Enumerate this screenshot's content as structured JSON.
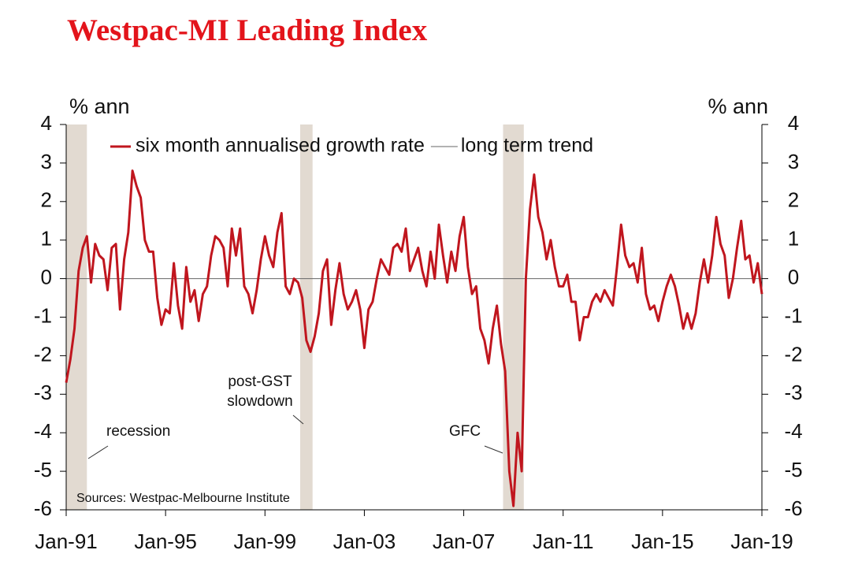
{
  "chart_data": {
    "type": "line",
    "title": "Westpac-MI Leading Index",
    "ylabel": "% ann",
    "y2label": "% ann",
    "source": "Sources: Westpac-Melbourne Institute",
    "x": [
      "1991-01",
      "1991-03",
      "1991-05",
      "1991-07",
      "1991-09",
      "1991-11",
      "1992-01",
      "1992-03",
      "1992-05",
      "1992-07",
      "1992-09",
      "1992-11",
      "1993-01",
      "1993-03",
      "1993-05",
      "1993-07",
      "1993-09",
      "1993-11",
      "1994-01",
      "1994-03",
      "1994-05",
      "1994-07",
      "1994-09",
      "1994-11",
      "1995-01",
      "1995-03",
      "1995-05",
      "1995-07",
      "1995-09",
      "1995-11",
      "1996-01",
      "1996-03",
      "1996-05",
      "1996-07",
      "1996-09",
      "1996-11",
      "1997-01",
      "1997-03",
      "1997-05",
      "1997-07",
      "1997-09",
      "1997-11",
      "1998-01",
      "1998-03",
      "1998-05",
      "1998-07",
      "1998-09",
      "1998-11",
      "1999-01",
      "1999-03",
      "1999-05",
      "1999-07",
      "1999-09",
      "1999-11",
      "2000-01",
      "2000-03",
      "2000-05",
      "2000-07",
      "2000-09",
      "2000-11",
      "2001-01",
      "2001-03",
      "2001-05",
      "2001-07",
      "2001-09",
      "2001-11",
      "2002-01",
      "2002-03",
      "2002-05",
      "2002-07",
      "2002-09",
      "2002-11",
      "2003-01",
      "2003-03",
      "2003-05",
      "2003-07",
      "2003-09",
      "2003-11",
      "2004-01",
      "2004-03",
      "2004-05",
      "2004-07",
      "2004-09",
      "2004-11",
      "2005-01",
      "2005-03",
      "2005-05",
      "2005-07",
      "2005-09",
      "2005-11",
      "2006-01",
      "2006-03",
      "2006-05",
      "2006-07",
      "2006-09",
      "2006-11",
      "2007-01",
      "2007-03",
      "2007-05",
      "2007-07",
      "2007-09",
      "2007-11",
      "2008-01",
      "2008-03",
      "2008-05",
      "2008-07",
      "2008-09",
      "2008-11",
      "2009-01",
      "2009-03",
      "2009-05",
      "2009-07",
      "2009-09",
      "2009-11",
      "2010-01",
      "2010-03",
      "2010-05",
      "2010-07",
      "2010-09",
      "2010-11",
      "2011-01",
      "2011-03",
      "2011-05",
      "2011-07",
      "2011-09",
      "2011-11",
      "2012-01",
      "2012-03",
      "2012-05",
      "2012-07",
      "2012-09",
      "2012-11",
      "2013-01",
      "2013-03",
      "2013-05",
      "2013-07",
      "2013-09",
      "2013-11",
      "2014-01",
      "2014-03",
      "2014-05",
      "2014-07",
      "2014-09",
      "2014-11",
      "2015-01",
      "2015-03",
      "2015-05",
      "2015-07",
      "2015-09",
      "2015-11",
      "2016-01",
      "2016-03",
      "2016-05",
      "2016-07",
      "2016-09",
      "2016-11",
      "2017-01",
      "2017-03",
      "2017-05",
      "2017-07",
      "2017-09",
      "2017-11",
      "2018-01",
      "2018-03",
      "2018-05",
      "2018-07",
      "2018-09",
      "2018-11",
      "2019-01"
    ],
    "series": [
      {
        "name": "six month annualised growth rate",
        "color": "#c0161e",
        "values": [
          -2.7,
          -2.1,
          -1.3,
          0.2,
          0.8,
          1.1,
          -0.1,
          0.9,
          0.6,
          0.5,
          -0.3,
          0.8,
          0.9,
          -0.8,
          0.5,
          1.2,
          2.8,
          2.4,
          2.1,
          1.0,
          0.7,
          0.7,
          -0.5,
          -1.2,
          -0.8,
          -0.9,
          0.4,
          -0.7,
          -1.3,
          0.3,
          -0.6,
          -0.3,
          -1.1,
          -0.4,
          -0.2,
          0.6,
          1.1,
          1.0,
          0.8,
          -0.2,
          1.3,
          0.6,
          1.3,
          -0.2,
          -0.4,
          -0.9,
          -0.3,
          0.5,
          1.1,
          0.6,
          0.3,
          1.2,
          1.7,
          -0.2,
          -0.4,
          0.0,
          -0.1,
          -0.5,
          -1.6,
          -1.9,
          -1.5,
          -0.9,
          0.2,
          0.5,
          -1.2,
          -0.3,
          0.4,
          -0.4,
          -0.8,
          -0.6,
          -0.3,
          -0.8,
          -1.8,
          -0.8,
          -0.6,
          0.0,
          0.5,
          0.3,
          0.1,
          0.8,
          0.9,
          0.7,
          1.3,
          0.2,
          0.5,
          0.8,
          0.2,
          -0.2,
          0.7,
          0.0,
          1.4,
          0.6,
          -0.1,
          0.7,
          0.2,
          1.1,
          1.6,
          0.3,
          -0.4,
          -0.2,
          -1.3,
          -1.6,
          -2.2,
          -1.3,
          -0.7,
          -1.7,
          -2.4,
          -5.0,
          -5.9,
          -4.0,
          -5.0,
          0.0,
          1.8,
          2.7,
          1.6,
          1.2,
          0.5,
          1.0,
          0.3,
          -0.2,
          -0.2,
          0.1,
          -0.6,
          -0.6,
          -1.6,
          -1.0,
          -1.0,
          -0.6,
          -0.4,
          -0.6,
          -0.3,
          -0.5,
          -0.7,
          0.3,
          1.4,
          0.6,
          0.3,
          0.4,
          -0.1,
          0.8,
          -0.4,
          -0.8,
          -0.7,
          -1.1,
          -0.6,
          -0.2,
          0.1,
          -0.2,
          -0.7,
          -1.3,
          -0.9,
          -1.3,
          -0.9,
          -0.1,
          0.5,
          -0.1,
          0.6,
          1.6,
          0.9,
          0.6,
          -0.5,
          0.0,
          0.8,
          1.5,
          0.5,
          0.6,
          -0.1,
          0.4,
          -0.4
        ]
      }
    ],
    "trend": {
      "name": "long term trend",
      "color": "#666666",
      "value": 0
    },
    "shaded_periods": [
      {
        "start": "1991-01",
        "end": "1991-11",
        "labels": [
          "recession"
        ]
      },
      {
        "start": "2000-06",
        "end": "2000-12",
        "labels": [
          "post-GST",
          "slowdown"
        ]
      },
      {
        "start": "2008-08",
        "end": "2009-06",
        "labels": [
          "GFC"
        ]
      }
    ],
    "shade_color": "#e2dad1",
    "xlim": [
      "1991-01",
      "2019-01"
    ],
    "xticks": [
      {
        "value": "1991-01",
        "label": "Jan-91"
      },
      {
        "value": "1995-01",
        "label": "Jan-95"
      },
      {
        "value": "1999-01",
        "label": "Jan-99"
      },
      {
        "value": "2003-01",
        "label": "Jan-03"
      },
      {
        "value": "2007-01",
        "label": "Jan-07"
      },
      {
        "value": "2011-01",
        "label": "Jan-11"
      },
      {
        "value": "2015-01",
        "label": "Jan-15"
      },
      {
        "value": "2019-01",
        "label": "Jan-19"
      }
    ],
    "ylim": [
      -6,
      4
    ],
    "yticks": [
      4,
      3,
      2,
      1,
      0,
      -1,
      -2,
      -3,
      -4,
      -5,
      -6
    ],
    "y2lim": [
      -6,
      4
    ],
    "y2ticks": [
      4,
      3,
      2,
      1,
      0,
      -1,
      -2,
      -3,
      -4,
      -5,
      -6
    ],
    "grid": false,
    "legend": "top-left"
  }
}
